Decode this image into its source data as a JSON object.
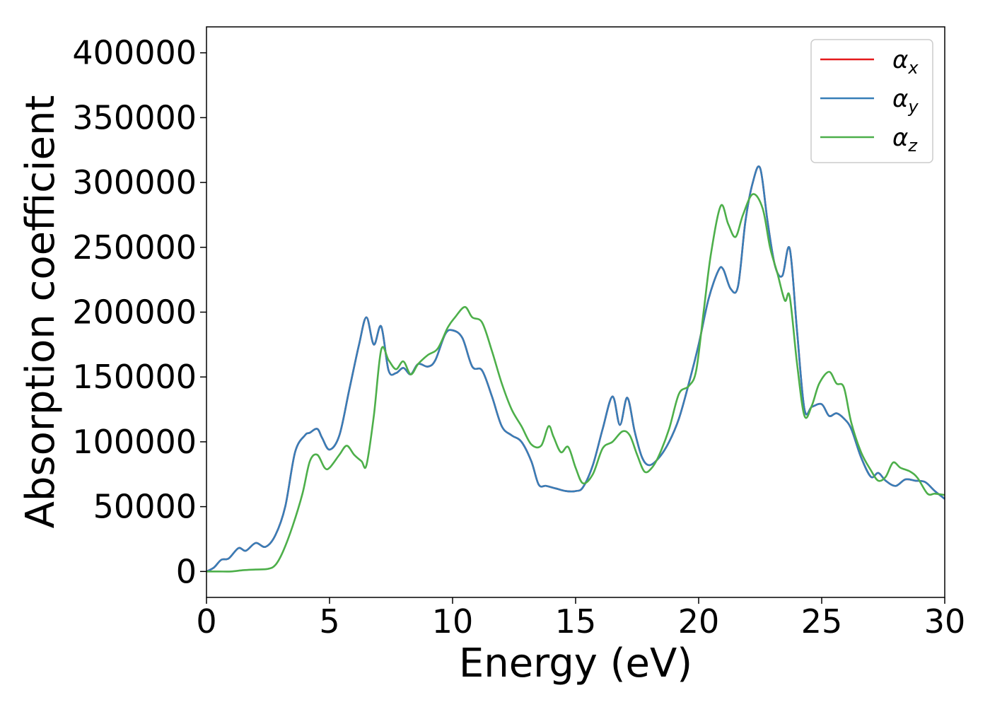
{
  "chart_data": {
    "type": "line",
    "xlabel": "Energy (eV)",
    "ylabel": "Absorption coefficient",
    "xlim": [
      0,
      30
    ],
    "ylim": [
      -20000,
      420000
    ],
    "xticks": [
      "0",
      "5",
      "10",
      "15",
      "20",
      "25",
      "30"
    ],
    "yticks": [
      "0",
      "50000",
      "100000",
      "150000",
      "200000",
      "250000",
      "300000",
      "350000",
      "400000"
    ],
    "grid": false,
    "legend_position": "top-right",
    "series": [
      {
        "name": "αx",
        "symbol": "α",
        "subscript": "x",
        "color": "#e41a1c",
        "x": [
          0,
          0.3,
          0.6,
          0.9,
          1.3,
          1.6,
          2.0,
          2.4,
          2.8,
          3.2,
          3.6,
          4.0,
          4.2,
          4.5,
          4.7,
          5.0,
          5.4,
          5.8,
          6.2,
          6.5,
          6.8,
          7.1,
          7.4,
          7.7,
          8.0,
          8.3,
          8.6,
          9.0,
          9.3,
          9.7,
          10.0,
          10.4,
          10.8,
          11.2,
          11.6,
          12.0,
          12.4,
          12.8,
          13.2,
          13.5,
          13.8,
          14.2,
          14.6,
          15.0,
          15.3,
          15.7,
          16.1,
          16.5,
          16.8,
          17.1,
          17.4,
          17.7,
          18.0,
          18.4,
          18.8,
          19.2,
          19.6,
          20.0,
          20.4,
          20.8,
          21.0,
          21.3,
          21.6,
          21.9,
          22.2,
          22.5,
          22.8,
          23.1,
          23.4,
          23.7,
          24.0,
          24.3,
          24.6,
          25.0,
          25.3,
          25.6,
          25.9,
          26.2,
          26.6,
          27.0,
          27.3,
          27.6,
          28.0,
          28.4,
          28.8,
          29.2,
          29.6,
          30.0
        ],
        "y": [
          0,
          3000,
          9000,
          10000,
          18000,
          16000,
          22000,
          19000,
          28000,
          50000,
          92000,
          105000,
          107000,
          110000,
          103000,
          94000,
          105000,
          140000,
          175000,
          196000,
          175000,
          189000,
          155000,
          153000,
          157000,
          152000,
          160000,
          158000,
          163000,
          183000,
          186000,
          180000,
          158000,
          155000,
          135000,
          112000,
          105000,
          100000,
          85000,
          67000,
          66000,
          64000,
          62000,
          62000,
          65000,
          82000,
          110000,
          135000,
          113000,
          134000,
          108000,
          88000,
          82000,
          88000,
          100000,
          118000,
          145000,
          175000,
          210000,
          232000,
          233000,
          218000,
          220000,
          270000,
          300000,
          311000,
          270000,
          236000,
          228000,
          249000,
          185000,
          125000,
          127000,
          129000,
          120000,
          122000,
          118000,
          110000,
          88000,
          73000,
          76000,
          70000,
          66000,
          71000,
          70000,
          69000,
          62000,
          56000
        ]
      },
      {
        "name": "αy",
        "symbol": "α",
        "subscript": "y",
        "color": "#377eb8",
        "x": [
          0,
          0.3,
          0.6,
          0.9,
          1.3,
          1.6,
          2.0,
          2.4,
          2.8,
          3.2,
          3.6,
          4.0,
          4.2,
          4.5,
          4.7,
          5.0,
          5.4,
          5.8,
          6.2,
          6.5,
          6.8,
          7.1,
          7.4,
          7.7,
          8.0,
          8.3,
          8.6,
          9.0,
          9.3,
          9.7,
          10.0,
          10.4,
          10.8,
          11.2,
          11.6,
          12.0,
          12.4,
          12.8,
          13.2,
          13.5,
          13.8,
          14.2,
          14.6,
          15.0,
          15.3,
          15.7,
          16.1,
          16.5,
          16.8,
          17.1,
          17.4,
          17.7,
          18.0,
          18.4,
          18.8,
          19.2,
          19.6,
          20.0,
          20.4,
          20.8,
          21.0,
          21.3,
          21.6,
          21.9,
          22.2,
          22.5,
          22.8,
          23.1,
          23.4,
          23.7,
          24.0,
          24.3,
          24.6,
          25.0,
          25.3,
          25.6,
          25.9,
          26.2,
          26.6,
          27.0,
          27.3,
          27.6,
          28.0,
          28.4,
          28.8,
          29.2,
          29.6,
          30.0
        ],
        "y": [
          0,
          3000,
          9000,
          10000,
          18000,
          16000,
          22000,
          19000,
          28000,
          50000,
          92000,
          105000,
          107000,
          110000,
          103000,
          94000,
          105000,
          140000,
          175000,
          196000,
          175000,
          189000,
          155000,
          153000,
          157000,
          152000,
          160000,
          158000,
          163000,
          183000,
          186000,
          180000,
          158000,
          155000,
          135000,
          112000,
          105000,
          100000,
          85000,
          67000,
          66000,
          64000,
          62000,
          62000,
          65000,
          82000,
          110000,
          135000,
          113000,
          134000,
          108000,
          88000,
          82000,
          88000,
          100000,
          118000,
          145000,
          175000,
          210000,
          232000,
          233000,
          218000,
          220000,
          270000,
          300000,
          311000,
          270000,
          236000,
          228000,
          249000,
          185000,
          125000,
          127000,
          129000,
          120000,
          122000,
          118000,
          110000,
          88000,
          73000,
          76000,
          70000,
          66000,
          71000,
          70000,
          69000,
          62000,
          56000
        ]
      },
      {
        "name": "αz",
        "symbol": "α",
        "subscript": "z",
        "color": "#4daf4a",
        "x": [
          0,
          0.5,
          1.0,
          1.5,
          2.0,
          2.5,
          2.8,
          3.1,
          3.5,
          3.9,
          4.2,
          4.5,
          4.8,
          5.0,
          5.4,
          5.7,
          6.0,
          6.3,
          6.5,
          6.8,
          7.1,
          7.4,
          7.7,
          8.0,
          8.3,
          8.6,
          9.0,
          9.4,
          9.8,
          10.1,
          10.5,
          10.8,
          11.2,
          11.6,
          12.0,
          12.4,
          12.8,
          13.2,
          13.6,
          13.9,
          14.1,
          14.4,
          14.7,
          15.0,
          15.3,
          15.7,
          16.1,
          16.5,
          16.9,
          17.2,
          17.5,
          17.8,
          18.1,
          18.4,
          18.8,
          19.2,
          19.6,
          19.9,
          20.2,
          20.5,
          20.9,
          21.2,
          21.5,
          21.8,
          22.2,
          22.6,
          22.9,
          23.2,
          23.5,
          23.7,
          24.0,
          24.3,
          24.6,
          24.9,
          25.3,
          25.6,
          25.9,
          26.2,
          26.6,
          27.0,
          27.3,
          27.6,
          27.9,
          28.2,
          28.6,
          28.9,
          29.3,
          29.6,
          30.0
        ],
        "y": [
          0,
          0,
          0,
          1000,
          1500,
          2000,
          5000,
          15000,
          35000,
          60000,
          85000,
          90000,
          80000,
          80000,
          90000,
          97000,
          90000,
          85000,
          82000,
          120000,
          171000,
          163000,
          156000,
          162000,
          152000,
          160000,
          167000,
          172000,
          188000,
          196000,
          204000,
          196000,
          192000,
          170000,
          145000,
          125000,
          112000,
          98000,
          97000,
          112000,
          104000,
          92000,
          96000,
          80000,
          68000,
          75000,
          95000,
          100000,
          108000,
          105000,
          90000,
          77000,
          80000,
          90000,
          110000,
          137000,
          143000,
          155000,
          200000,
          245000,
          282000,
          268000,
          258000,
          275000,
          291000,
          280000,
          250000,
          230000,
          209000,
          212000,
          160000,
          120000,
          128000,
          145000,
          154000,
          145000,
          142000,
          115000,
          92000,
          78000,
          70000,
          73000,
          84000,
          80000,
          77000,
          72000,
          60000,
          60000,
          59000
        ]
      }
    ]
  }
}
